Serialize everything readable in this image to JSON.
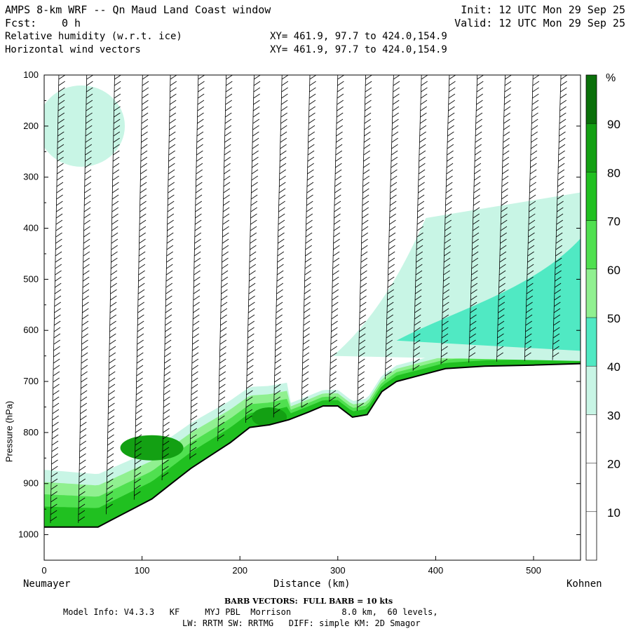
{
  "header": {
    "title": "AMPS 8-km WRF -- Qn Maud Land Coast window",
    "fcst_label": "Fcst:",
    "fcst_value": "0 h",
    "init": "Init: 12 UTC Mon 29 Sep 25",
    "valid": "Valid: 12 UTC Mon 29 Sep 25",
    "field1": "Relative humidity (w.r.t. ice)",
    "field2": "Horizontal wind vectors",
    "xy1": "XY= 461.9, 97.7 to 424.0,154.9",
    "xy2": "XY= 461.9, 97.7 to 424.0,154.9"
  },
  "chart_data": {
    "type": "heatmap",
    "title": "Relative humidity (w.r.t. ice) cross section with horizontal wind barbs",
    "xlabel": "Distance (km)",
    "ylabel": "Pressure (hPa)",
    "x_ticks": [
      0,
      100,
      200,
      300,
      400,
      500
    ],
    "y_ticks": [
      100,
      200,
      300,
      400,
      500,
      600,
      700,
      800,
      900,
      1000
    ],
    "xlim": [
      0,
      548
    ],
    "ylim": [
      100,
      1050
    ],
    "left_end": "Neumayer",
    "right_end": "Kohnen",
    "colorbar": {
      "unit": "%",
      "levels": [
        10,
        20,
        30,
        40,
        50,
        60,
        70,
        80,
        90
      ],
      "colors": [
        "#ffffff",
        "#ffffff",
        "#ffffff",
        "#c8f5e5",
        "#50e9c3",
        "#90f090",
        "#50e050",
        "#20c020",
        "#13a013",
        "#0a700a"
      ]
    },
    "terrain_surface": {
      "x_km": [
        0,
        20,
        55,
        70,
        90,
        110,
        130,
        150,
        170,
        190,
        210,
        230,
        250,
        270,
        285,
        300,
        315,
        330,
        345,
        360,
        380,
        410,
        450,
        500,
        548
      ],
      "pressure_hpa": [
        985,
        985,
        985,
        970,
        950,
        930,
        900,
        870,
        845,
        820,
        790,
        785,
        775,
        760,
        748,
        748,
        770,
        765,
        720,
        700,
        690,
        675,
        670,
        668,
        665
      ]
    },
    "barb_legend": "BARB VECTORS:  FULL BARB = 10 kts"
  },
  "footer": {
    "model_info": "Model Info: V4.3.3   KF     MYJ PBL  Morrison          8.0 km,  60 levels,",
    "physics": "LW: RRTM SW: RRTMG   DIFF: simple KM: 2D Smagor"
  }
}
